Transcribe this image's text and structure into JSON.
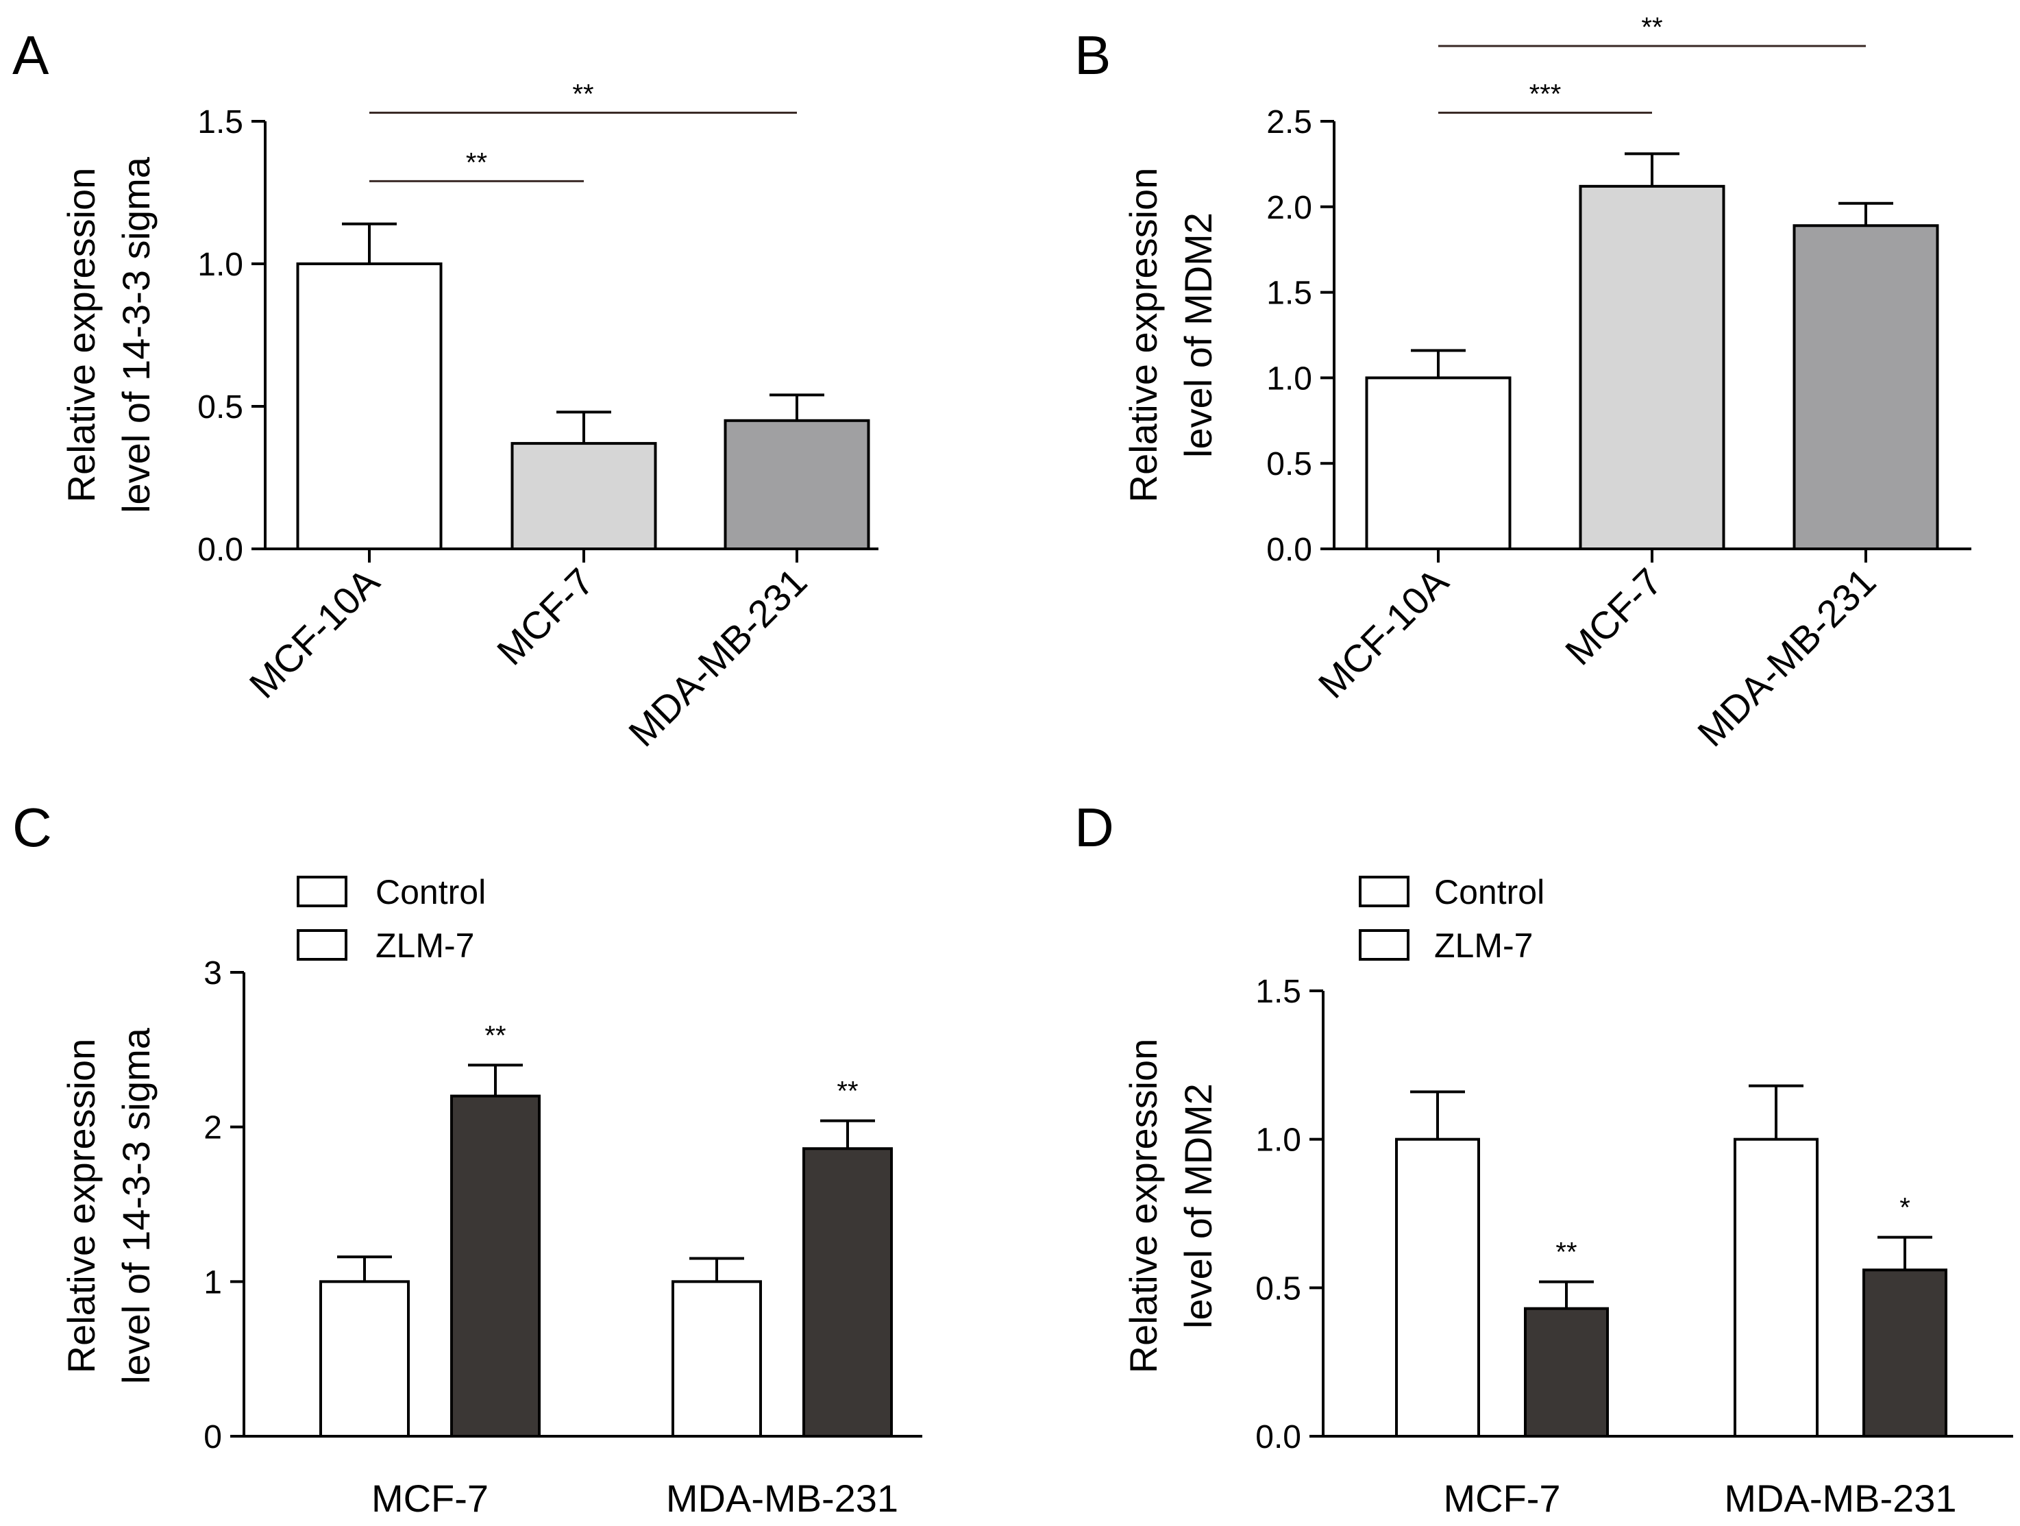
{
  "chart_data": [
    {
      "panel": "A",
      "type": "bar",
      "ylabel_lines": [
        "Relative expression",
        "level of 14-3-3 sigma"
      ],
      "ylim": [
        0,
        1.5
      ],
      "yticks": [
        "0.0",
        "0.5",
        "1.0",
        "1.5"
      ],
      "categories": [
        "MCF-10A",
        "MCF-7",
        "MDA-MB-231"
      ],
      "values": [
        1.0,
        0.37,
        0.45
      ],
      "errors": [
        0.14,
        0.11,
        0.09
      ],
      "fills": [
        "#ffffff",
        "#d6d6d6",
        "#a0a0a2"
      ],
      "significance": [
        {
          "label": "**",
          "from": 0,
          "to": 1,
          "level": 1.29
        },
        {
          "label": "**",
          "from": 0,
          "to": 2,
          "level": 1.53
        }
      ]
    },
    {
      "panel": "B",
      "type": "bar",
      "ylabel_lines": [
        "Relative expression",
        "level of MDM2"
      ],
      "ylim": [
        0,
        2.5
      ],
      "yticks": [
        "0.0",
        "0.5",
        "1.0",
        "1.5",
        "2.0",
        "2.5"
      ],
      "categories": [
        "MCF-10A",
        "MCF-7",
        "MDA-MB-231"
      ],
      "values": [
        1.0,
        2.12,
        1.89
      ],
      "errors": [
        0.16,
        0.19,
        0.13
      ],
      "fills": [
        "#ffffff",
        "#d6d6d6",
        "#a0a0a2"
      ],
      "significance": [
        {
          "label": "***",
          "from": 0,
          "to": 1,
          "level": 2.55
        },
        {
          "label": "**",
          "from": 0,
          "to": 2,
          "level": 2.94
        }
      ]
    },
    {
      "panel": "C",
      "type": "bar",
      "ylabel_lines": [
        "Relative expression",
        "level of 14-3-3 sigma"
      ],
      "ylim": [
        0,
        3
      ],
      "yticks": [
        "0",
        "1",
        "2",
        "3"
      ],
      "categories": [
        "MCF-7",
        "MDA-MB-231"
      ],
      "legend": [
        "Control",
        "ZLM-7"
      ],
      "series": [
        {
          "name": "Control",
          "fill": "#ffffff",
          "values": [
            1.0,
            1.0
          ],
          "errors": [
            0.16,
            0.15
          ],
          "sig": [
            "",
            ""
          ]
        },
        {
          "name": "ZLM-7",
          "fill": "#3b3735",
          "values": [
            2.2,
            1.86
          ],
          "errors": [
            0.2,
            0.18
          ],
          "sig": [
            "**",
            "**"
          ]
        }
      ]
    },
    {
      "panel": "D",
      "type": "bar",
      "ylabel_lines": [
        "Relative expression",
        "level of MDM2"
      ],
      "ylim": [
        0,
        1.5
      ],
      "yticks": [
        "0.0",
        "0.5",
        "1.0",
        "1.5"
      ],
      "categories": [
        "MCF-7",
        "MDA-MB-231"
      ],
      "legend": [
        "Control",
        "ZLM-7"
      ],
      "series": [
        {
          "name": "Control",
          "fill": "#ffffff",
          "values": [
            1.0,
            1.0
          ],
          "errors": [
            0.16,
            0.18
          ],
          "sig": [
            "",
            ""
          ]
        },
        {
          "name": "ZLM-7",
          "fill": "#3b3735",
          "values": [
            0.43,
            0.56
          ],
          "errors": [
            0.09,
            0.11
          ],
          "sig": [
            "**",
            "*"
          ]
        }
      ]
    }
  ]
}
